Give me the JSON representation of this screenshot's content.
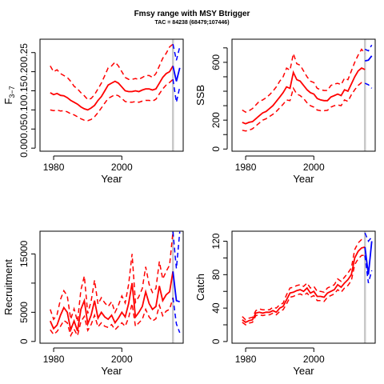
{
  "title": "Fmsy range with MSY Btrigger",
  "subtitle": "TAC = 84238 (68479;107446)",
  "colors": {
    "historical": "#ff0000",
    "forecast": "#0000ff",
    "divider": "#c8c8c8"
  },
  "chart_data": [
    {
      "type": "line",
      "xlabel": "Year",
      "ylabel": "F3-7",
      "ylabel_display": {
        "base": "F",
        "sub": "3−7",
        "bar": true
      },
      "xlim": [
        1976,
        2018
      ],
      "ylim": [
        -0.008,
        0.285
      ],
      "xticks": [
        1980,
        2000
      ],
      "yticks": [
        0.0,
        0.1,
        0.2
      ],
      "yticks_minor": [
        0.05,
        0.15,
        0.25
      ],
      "ytick_labels": [
        "0.00",
        "0.10",
        "0.20"
      ],
      "ytick_minor_labels": [
        "0.05",
        "0.15",
        "0.25"
      ],
      "divider_x": 2015,
      "x": [
        1979,
        1980,
        1981,
        1982,
        1983,
        1984,
        1985,
        1986,
        1987,
        1988,
        1989,
        1990,
        1991,
        1992,
        1993,
        1994,
        1995,
        1996,
        1997,
        1998,
        1999,
        2000,
        2001,
        2002,
        2003,
        2004,
        2005,
        2006,
        2007,
        2008,
        2009,
        2010,
        2011,
        2012,
        2013,
        2014,
        2015
      ],
      "median": [
        0.145,
        0.14,
        0.143,
        0.138,
        0.137,
        0.132,
        0.125,
        0.12,
        0.115,
        0.108,
        0.103,
        0.1,
        0.105,
        0.112,
        0.125,
        0.135,
        0.15,
        0.165,
        0.17,
        0.175,
        0.17,
        0.16,
        0.15,
        0.148,
        0.148,
        0.15,
        0.148,
        0.152,
        0.155,
        0.155,
        0.152,
        0.155,
        0.17,
        0.185,
        0.195,
        0.2,
        0.215
      ],
      "upper": [
        0.215,
        0.2,
        0.205,
        0.195,
        0.19,
        0.185,
        0.175,
        0.162,
        0.155,
        0.145,
        0.137,
        0.127,
        0.13,
        0.14,
        0.155,
        0.17,
        0.19,
        0.21,
        0.215,
        0.225,
        0.215,
        0.2,
        0.185,
        0.18,
        0.18,
        0.182,
        0.18,
        0.185,
        0.19,
        0.19,
        0.185,
        0.195,
        0.215,
        0.235,
        0.248,
        0.265,
        0.272
      ],
      "lower": [
        0.1,
        0.098,
        0.1,
        0.097,
        0.098,
        0.095,
        0.09,
        0.087,
        0.082,
        0.077,
        0.073,
        0.072,
        0.075,
        0.082,
        0.093,
        0.105,
        0.118,
        0.13,
        0.135,
        0.14,
        0.137,
        0.13,
        0.122,
        0.12,
        0.12,
        0.122,
        0.12,
        0.123,
        0.125,
        0.125,
        0.123,
        0.128,
        0.142,
        0.155,
        0.165,
        0.172,
        0.18
      ],
      "forecast_x": [
        2015,
        2016,
        2017
      ],
      "forecast_median": [
        0.215,
        0.175,
        0.21
      ],
      "forecast_upper": [
        0.272,
        0.23,
        0.265
      ],
      "forecast_lower": [
        0.18,
        0.12,
        0.16
      ]
    },
    {
      "type": "line",
      "xlabel": "Year",
      "ylabel": "SSB",
      "xlim": [
        1976,
        2018
      ],
      "ylim": [
        -15,
        760
      ],
      "xticks": [
        1980,
        2000
      ],
      "yticks": [
        0,
        200,
        600
      ],
      "yticks_minor": [
        100,
        300,
        400,
        500,
        700
      ],
      "ytick_labels": [
        "0",
        "200",
        "600"
      ],
      "divider_x": 2015,
      "x": [
        1979,
        1980,
        1981,
        1982,
        1983,
        1984,
        1985,
        1986,
        1987,
        1988,
        1989,
        1990,
        1991,
        1992,
        1993,
        1994,
        1995,
        1996,
        1997,
        1998,
        1999,
        2000,
        2001,
        2002,
        2003,
        2004,
        2005,
        2006,
        2007,
        2008,
        2009,
        2010,
        2011,
        2012,
        2013,
        2014,
        2015
      ],
      "median": [
        185,
        175,
        185,
        190,
        210,
        230,
        250,
        260,
        280,
        300,
        330,
        360,
        390,
        430,
        420,
        530,
        480,
        470,
        440,
        410,
        390,
        380,
        350,
        340,
        335,
        335,
        360,
        370,
        380,
        370,
        410,
        400,
        450,
        500,
        540,
        560,
        550
      ],
      "upper": [
        270,
        255,
        265,
        280,
        305,
        330,
        340,
        355,
        375,
        400,
        430,
        470,
        500,
        560,
        545,
        660,
        590,
        580,
        540,
        500,
        470,
        460,
        420,
        410,
        405,
        405,
        440,
        450,
        455,
        445,
        490,
        480,
        540,
        600,
        650,
        690,
        660
      ],
      "lower": [
        130,
        125,
        130,
        140,
        160,
        180,
        200,
        210,
        225,
        240,
        260,
        285,
        310,
        340,
        335,
        420,
        380,
        370,
        350,
        320,
        300,
        290,
        270,
        265,
        265,
        268,
        290,
        300,
        305,
        300,
        340,
        330,
        375,
        410,
        440,
        460,
        455
      ],
      "forecast_x": [
        2015,
        2016,
        2017
      ],
      "forecast_median": [
        610,
        615,
        645
      ],
      "forecast_upper": [
        690,
        680,
        720
      ],
      "forecast_lower": [
        455,
        445,
        420
      ]
    },
    {
      "type": "line",
      "xlabel": "Year",
      "ylabel": "Recruitment",
      "xlim": [
        1976,
        2018
      ],
      "ylim": [
        -300,
        18900
      ],
      "xticks": [
        1980,
        2000
      ],
      "yticks": [
        0,
        5000,
        15000
      ],
      "yticks_minor": [
        10000
      ],
      "ytick_labels": [
        "0",
        "5000",
        "15000"
      ],
      "divider_x": 2015,
      "x": [
        1979,
        1980,
        1981,
        1982,
        1983,
        1984,
        1985,
        1986,
        1987,
        1988,
        1989,
        1990,
        1991,
        1992,
        1993,
        1994,
        1995,
        1996,
        1997,
        1998,
        1999,
        2000,
        2001,
        2002,
        2003,
        2004,
        2005,
        2006,
        2007,
        2008,
        2009,
        2010,
        2011,
        2012,
        2013,
        2014,
        2015
      ],
      "median": [
        3500,
        2200,
        2800,
        4500,
        5800,
        5000,
        2000,
        3500,
        1800,
        5500,
        7000,
        3000,
        4500,
        7000,
        4000,
        5000,
        4200,
        3800,
        4500,
        3200,
        4000,
        5000,
        4200,
        6500,
        10000,
        4200,
        5000,
        6000,
        8500,
        6500,
        5500,
        6000,
        9500,
        7000,
        8000,
        8500,
        12000
      ],
      "upper": [
        5500,
        3800,
        4600,
        7200,
        8700,
        7800,
        3800,
        5600,
        3400,
        8800,
        11200,
        4800,
        6900,
        10500,
        6400,
        7500,
        6600,
        6000,
        6800,
        5000,
        6200,
        7800,
        6600,
        9800,
        15000,
        6700,
        7700,
        9100,
        12800,
        9800,
        8400,
        9100,
        13700,
        10700,
        12000,
        13100,
        18800
      ],
      "lower": [
        2000,
        1200,
        1700,
        2600,
        3600,
        3200,
        1000,
        2100,
        1000,
        3400,
        4300,
        1900,
        2900,
        4500,
        2500,
        3200,
        2600,
        2400,
        2900,
        2000,
        2600,
        3200,
        2600,
        4100,
        6500,
        2600,
        3200,
        3800,
        5500,
        4200,
        3500,
        3900,
        6200,
        4400,
        5200,
        5500,
        7500
      ],
      "forecast_x": [
        2015,
        2016,
        2017
      ],
      "forecast_median": [
        12000,
        7000,
        6800
      ],
      "forecast_upper": [
        18800,
        12500,
        18800
      ],
      "forecast_lower": [
        7500,
        3000,
        1500
      ]
    },
    {
      "type": "line",
      "xlabel": "Year",
      "ylabel": "Catch",
      "xlim": [
        1976,
        2018
      ],
      "ylim": [
        -2,
        132
      ],
      "xticks": [
        1980,
        2000
      ],
      "yticks": [
        0,
        40,
        80,
        120
      ],
      "yticks_minor": [
        20,
        60,
        100
      ],
      "ytick_labels": [
        "0",
        "40",
        "80",
        "120"
      ],
      "divider_x": 2015,
      "x": [
        1979,
        1980,
        1981,
        1982,
        1983,
        1984,
        1985,
        1986,
        1987,
        1988,
        1989,
        1990,
        1991,
        1992,
        1993,
        1994,
        1995,
        1996,
        1997,
        1998,
        1999,
        2000,
        2001,
        2002,
        2003,
        2004,
        2005,
        2006,
        2007,
        2008,
        2009,
        2010,
        2011,
        2012,
        2013,
        2014,
        2015
      ],
      "median": [
        26,
        23,
        25,
        26,
        34,
        35,
        34,
        35,
        35,
        37,
        35,
        40,
        42,
        50,
        58,
        59,
        61,
        62,
        60,
        64,
        58,
        60,
        54,
        54,
        53,
        58,
        60,
        62,
        68,
        65,
        70,
        74,
        80,
        100,
        108,
        112,
        113
      ],
      "upper": [
        30,
        26,
        28,
        29,
        37,
        39,
        38,
        38,
        38,
        41,
        40,
        44,
        46,
        56,
        64,
        65,
        67,
        68,
        66,
        70,
        64,
        66,
        60,
        60,
        59,
        64,
        66,
        68,
        75,
        72,
        77,
        82,
        88,
        110,
        118,
        122,
        123
      ],
      "lower": [
        23,
        20,
        22,
        23,
        31,
        32,
        31,
        32,
        32,
        34,
        32,
        36,
        38,
        45,
        53,
        54,
        56,
        57,
        55,
        58,
        53,
        55,
        49,
        49,
        48,
        53,
        55,
        57,
        62,
        59,
        64,
        67,
        73,
        92,
        99,
        103,
        103
      ],
      "forecast_x": [
        2015,
        2016,
        2017
      ],
      "forecast_median": [
        113,
        80,
        120
      ],
      "forecast_upper": [
        130,
        120,
        125
      ],
      "forecast_lower": [
        103,
        70,
        85
      ]
    }
  ]
}
